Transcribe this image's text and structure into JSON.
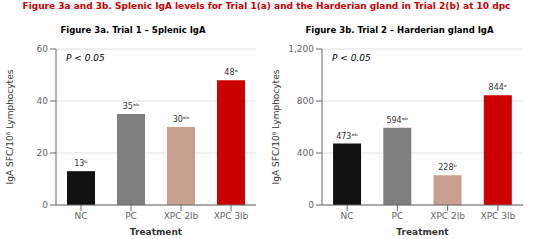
{
  "title": "Figure 3a and 3b. Splenic IgA levels for Trial 1(a) and the Harderian gland in Trial 2(b) at 10 dpc",
  "color": "#cc0000",
  "chart_data": [
    {
      "type": "bar",
      "title": "Figure 3a. Trial 1 – Splenic IgA",
      "categories": [
        "NC",
        "PC",
        "XPC 2lb",
        "XPC 3lb"
      ],
      "values": [
        13,
        35,
        30,
        48
      ],
      "value_labels": [
        "13ᵇ",
        "35ᵃᵇ",
        "30ᵃᵇ",
        "48ᵃ"
      ],
      "data_labels": true,
      "colors": [
        "#111111",
        "#7f7f7f",
        "#c8a090",
        "#cc0000"
      ],
      "xlabel": "Treatment",
      "ylabel": "IgA SFC/10⁶ Lymphocytes",
      "ylim": [
        0,
        60
      ],
      "yticks": [
        0,
        20,
        40,
        60
      ],
      "annotation": "P < 0.05",
      "grid": true
    },
    {
      "type": "bar",
      "title": "Figure 3b. Trial 2 – Harderian gland IgA",
      "categories": [
        "NC",
        "PC",
        "XPC 2lb",
        "XPC 3lb"
      ],
      "values": [
        473,
        594,
        228,
        844
      ],
      "value_labels": [
        "473ᵃᵇ",
        "594ᵃᵇ",
        "228ᵇ",
        "844ᵃ"
      ],
      "data_labels": true,
      "colors": [
        "#111111",
        "#7f7f7f",
        "#c8a090",
        "#cc0000"
      ],
      "xlabel": "Treatment",
      "ylabel": "IgA SFC/10⁶ Lymphocytes",
      "ylim": [
        0,
        1200
      ],
      "yticks": [
        0,
        400,
        800,
        {
          "value": 1200,
          "label": "1,200"
        }
      ],
      "annotation": "P < 0.05",
      "grid": true
    }
  ]
}
